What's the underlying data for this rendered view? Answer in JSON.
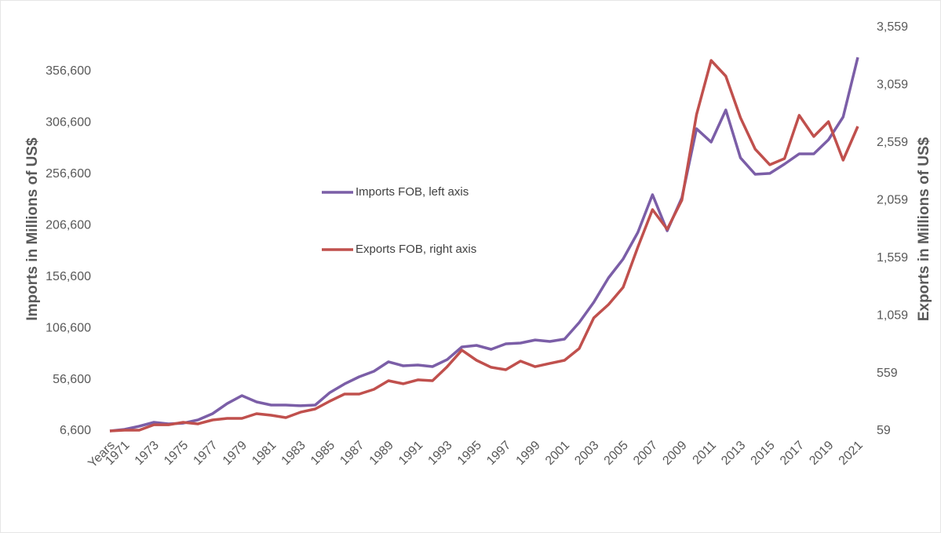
{
  "chart_data": {
    "type": "line",
    "categories": [
      "Years",
      "1971",
      null,
      "1973",
      null,
      "1975",
      null,
      "1977",
      null,
      "1979",
      null,
      "1981",
      null,
      "1983",
      null,
      "1985",
      null,
      "1987",
      null,
      "1989",
      null,
      "1991",
      null,
      "1993",
      null,
      "1995",
      null,
      "1997",
      null,
      "1999",
      null,
      "2001",
      null,
      "2003",
      null,
      "2005",
      null,
      "2007",
      null,
      "2009",
      null,
      "2011",
      null,
      "2013",
      null,
      "2015",
      null,
      "2017",
      null,
      "2019",
      null,
      "2021"
    ],
    "series": [
      {
        "name": "Imports FOB, left axis",
        "color": "#7b5ea7",
        "axis": "y",
        "values": [
          6600,
          8100,
          11200,
          15000,
          13500,
          14200,
          17300,
          23400,
          33300,
          41000,
          34900,
          31800,
          31800,
          31100,
          31800,
          44000,
          52400,
          59300,
          64700,
          73900,
          70000,
          70800,
          69300,
          76100,
          88400,
          89900,
          86100,
          91400,
          92200,
          95200,
          93700,
          96000,
          112100,
          131900,
          155600,
          174000,
          199900,
          236600,
          201500,
          233600,
          300800,
          287800,
          319100,
          272500,
          256500,
          257300,
          266400,
          276400,
          276400,
          290100,
          312300,
          370300
        ]
      },
      {
        "name": "Exports FOB, right axis",
        "color": "#c0504d",
        "axis": "y2",
        "values": [
          59,
          66,
          66,
          113,
          113,
          134,
          120,
          154,
          168,
          168,
          209,
          195,
          175,
          222,
          250,
          318,
          379,
          379,
          420,
          495,
          468,
          502,
          495,
          617,
          760,
          672,
          611,
          590,
          665,
          617,
          645,
          672,
          774,
          1040,
          1155,
          1305,
          1653,
          1979,
          1809,
          2061,
          2803,
          3273,
          3137,
          2776,
          2504,
          2368,
          2422,
          2797,
          2613,
          2742,
          2408,
          2701
        ]
      }
    ],
    "ylabel": "Imports in Millions of US$",
    "y2label": "Exports in Millions of US$",
    "ylim": [
      6600,
      399400
    ],
    "yticks": [
      {
        "value": 6600,
        "label": "6,600"
      },
      {
        "value": 56600,
        "label": "56,600"
      },
      {
        "value": 106600,
        "label": "106,600"
      },
      {
        "value": 156600,
        "label": "156,600"
      },
      {
        "value": 206600,
        "label": "206,600"
      },
      {
        "value": 256600,
        "label": "256,600"
      },
      {
        "value": 306600,
        "label": "306,600"
      },
      {
        "value": 356600,
        "label": "356,600"
      }
    ],
    "y2lim": [
      59,
      3559
    ],
    "y2ticks": [
      59,
      559,
      {
        "value": 1059,
        "label": "1,059"
      },
      {
        "value": 1559,
        "label": "1,559"
      },
      {
        "value": 2059,
        "label": "2,059"
      },
      {
        "value": 2559,
        "label": "2,559"
      },
      {
        "value": 3059,
        "label": "3,059"
      },
      {
        "value": 3559,
        "label": "3,559"
      }
    ],
    "grid": false
  }
}
